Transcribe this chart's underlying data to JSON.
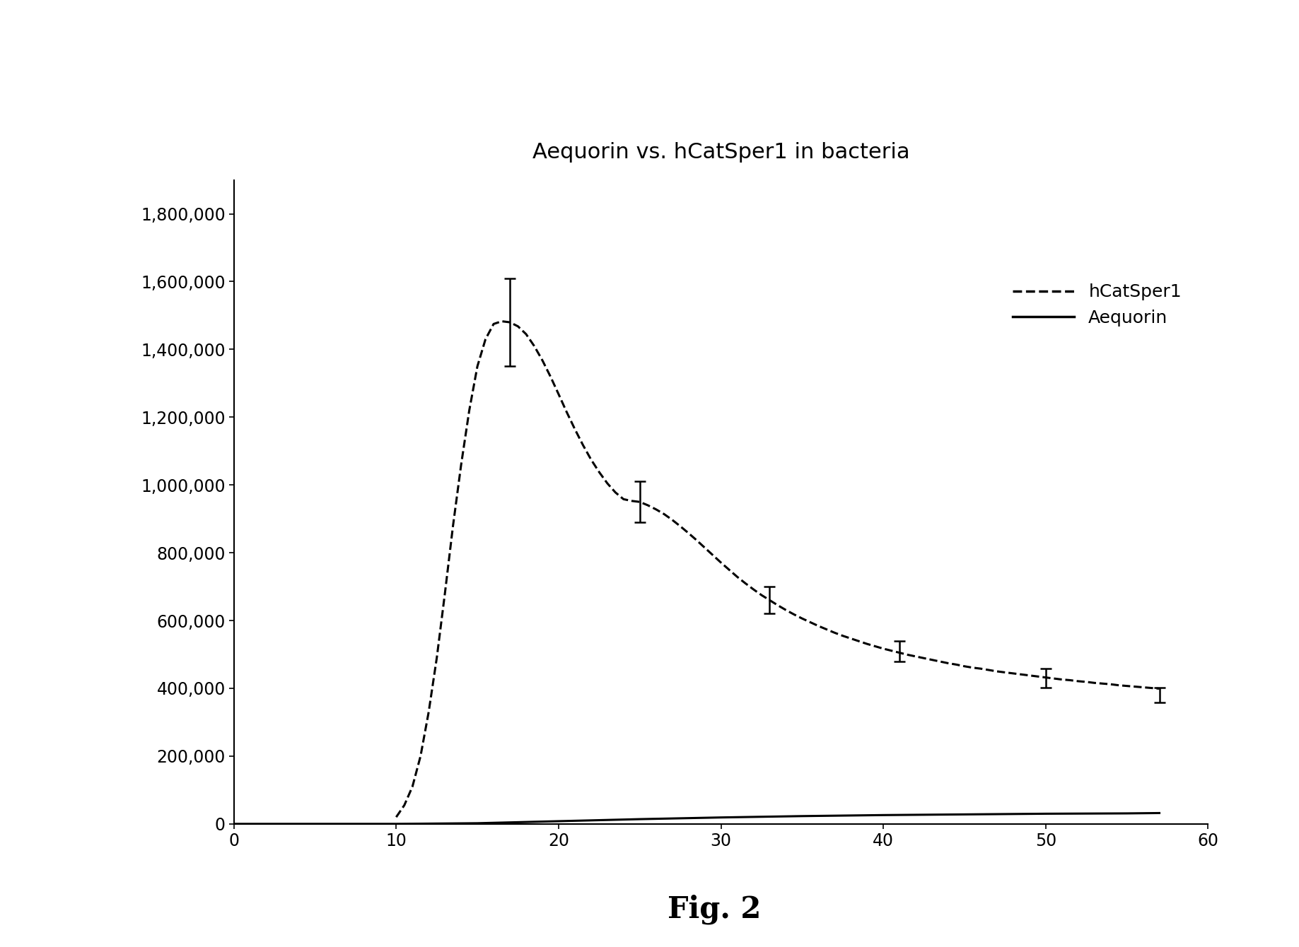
{
  "title": "Aequorin vs. hCatSper1 in bacteria",
  "fig_caption": "Fig. 2",
  "xlim": [
    0,
    60
  ],
  "ylim": [
    0,
    1900000
  ],
  "xticks": [
    0,
    10,
    20,
    30,
    40,
    50,
    60
  ],
  "yticks": [
    0,
    200000,
    400000,
    600000,
    800000,
    1000000,
    1200000,
    1400000,
    1600000,
    1800000
  ],
  "hcatsper1_x": [
    17,
    25,
    33,
    41,
    50,
    57
  ],
  "hcatsper1_y": [
    1480000,
    950000,
    660000,
    510000,
    430000,
    380000
  ],
  "hcatsper1_yerr": [
    130000,
    60000,
    40000,
    30000,
    28000,
    22000
  ],
  "hcatsper1_smooth_x": [
    10.0,
    10.5,
    11.0,
    11.5,
    12.0,
    12.5,
    13.0,
    13.5,
    14.0,
    14.5,
    15.0,
    15.5,
    16.0,
    16.5,
    17.0,
    17.5,
    18.0,
    18.5,
    19.0,
    19.5,
    20.0,
    20.5,
    21.0,
    21.5,
    22.0,
    22.5,
    23.0,
    23.5,
    24.0,
    24.5,
    25.0,
    25.5,
    26.0,
    26.5,
    27.0,
    27.5,
    28.0,
    28.5,
    29.0,
    29.5,
    30.0,
    30.5,
    31.0,
    31.5,
    32.0,
    32.5,
    33.0,
    33.5,
    34.0,
    34.5,
    35.0,
    35.5,
    36.0,
    36.5,
    37.0,
    37.5,
    38.0,
    38.5,
    39.0,
    39.5,
    40.0,
    40.5,
    41.0,
    41.5,
    42.0,
    42.5,
    43.0,
    43.5,
    44.0,
    44.5,
    45.0,
    45.5,
    46.0,
    46.5,
    47.0,
    47.5,
    48.0,
    48.5,
    49.0,
    49.5,
    50.0,
    50.5,
    51.0,
    51.5,
    52.0,
    52.5,
    53.0,
    53.5,
    54.0,
    54.5,
    55.0,
    55.5,
    56.0,
    56.5,
    57.0
  ],
  "hcatsper1_smooth_y": [
    20000,
    55000,
    110000,
    200000,
    330000,
    490000,
    680000,
    880000,
    1060000,
    1220000,
    1350000,
    1430000,
    1475000,
    1483000,
    1480000,
    1468000,
    1445000,
    1410000,
    1368000,
    1320000,
    1268000,
    1215000,
    1165000,
    1118000,
    1075000,
    1038000,
    1005000,
    978000,
    958000,
    953000,
    950000,
    940000,
    928000,
    914000,
    897000,
    878000,
    858000,
    837000,
    815000,
    793000,
    771000,
    750000,
    729000,
    710000,
    692000,
    675000,
    660000,
    645000,
    631000,
    618000,
    606000,
    595000,
    584000,
    574000,
    564000,
    555000,
    547000,
    539000,
    531000,
    524000,
    517000,
    511000,
    505000,
    499000,
    494000,
    489000,
    484000,
    479000,
    474000,
    470000,
    465000,
    461000,
    458000,
    454000,
    450000,
    447000,
    444000,
    441000,
    438000,
    435000,
    432000,
    429000,
    426000,
    424000,
    421000,
    419000,
    416000,
    414000,
    412000,
    409000,
    407000,
    405000,
    403000,
    401000,
    399000
  ],
  "aequorin_x": [
    0,
    5,
    10,
    15,
    20,
    25,
    30,
    35,
    40,
    45,
    50,
    55,
    57
  ],
  "aequorin_y": [
    0,
    0,
    0,
    2000,
    8000,
    14000,
    19000,
    23000,
    26000,
    28000,
    30000,
    31000,
    32000
  ],
  "legend_labels": [
    "hCatSper1",
    "Aequorin"
  ],
  "line_color": "#000000",
  "background_color": "#ffffff",
  "title_fontsize": 22,
  "tick_fontsize": 17,
  "legend_fontsize": 18,
  "caption_fontsize": 30
}
